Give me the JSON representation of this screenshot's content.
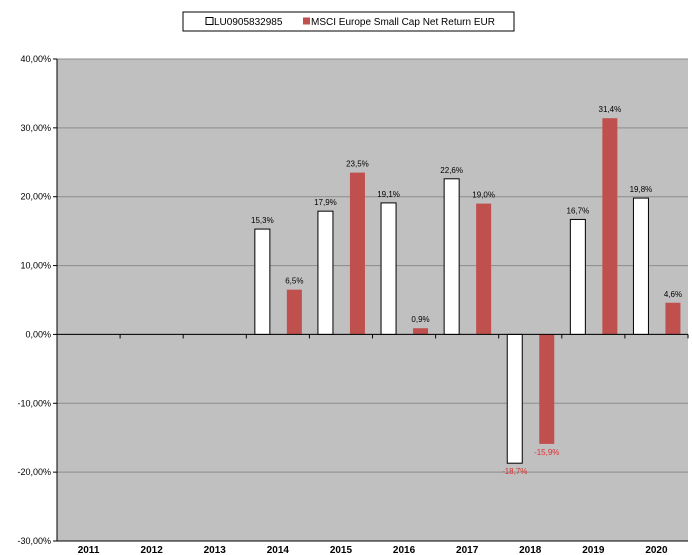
{
  "chart_data": {
    "type": "bar",
    "categories": [
      "2011",
      "2012",
      "2013",
      "2014",
      "2015",
      "2016",
      "2017",
      "2018",
      "2019",
      "2020"
    ],
    "series": [
      {
        "name": "LU0905832985",
        "color": "#ffffff",
        "values": [
          null,
          null,
          null,
          15.3,
          17.9,
          19.1,
          22.6,
          -18.7,
          16.7,
          19.8
        ],
        "labels": [
          "",
          "",
          "",
          "15,3%",
          "17,9%",
          "19,1%",
          "22,6%",
          "-18,7%",
          "16,7%",
          "19,8%"
        ]
      },
      {
        "name": "MSCI Europe Small Cap Net Return EUR",
        "color": "#c0504d",
        "values": [
          null,
          null,
          null,
          6.5,
          23.5,
          0.9,
          19.0,
          -15.9,
          31.4,
          4.6
        ],
        "labels": [
          "",
          "",
          "",
          "6,5%",
          "23,5%",
          "0,9%",
          "19,0%",
          "-15,9%",
          "31,4%",
          "4,6%"
        ]
      }
    ],
    "ylim": [
      -30,
      40
    ],
    "yticks": [
      -30,
      -20,
      -10,
      0,
      10,
      20,
      30,
      40
    ],
    "ytick_labels": [
      "-30,00%",
      "-20,00%",
      "-10,00%",
      "0,00%",
      "10,00%",
      "20,00%",
      "30,00%",
      "40,00%"
    ],
    "grid": true,
    "legend_position": "top-center",
    "plot_background": "#c0c0c0",
    "negative_label_color": "#e03030"
  }
}
